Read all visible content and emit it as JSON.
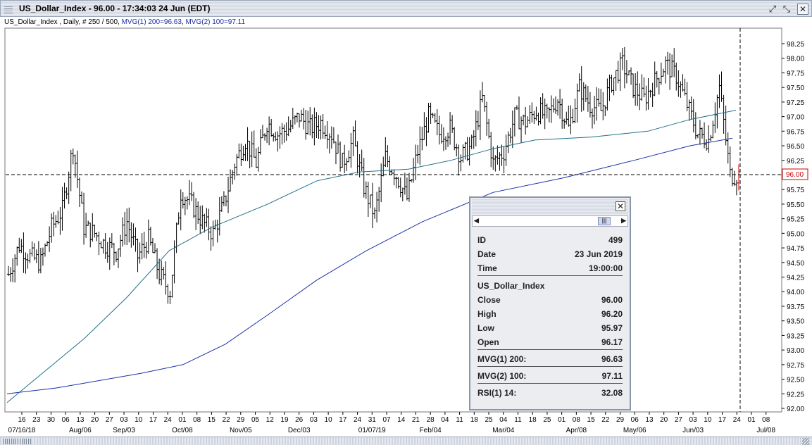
{
  "window": {
    "title": "US_Dollar_Index - 96.00 - 17:34:03  24 Jun (EDT)"
  },
  "subtitle": {
    "prefix": "US_Dollar_Index , Daily, # 250 / 500, ",
    "mvg1": "MVG(1) 200=96.63",
    "sep": ", ",
    "mvg2": "MVG(2) 100=97.11"
  },
  "chart_data": {
    "type": "bar",
    "style": "ohlc",
    "y_ticks": [
      "98.25",
      "98.00",
      "97.75",
      "97.50",
      "97.25",
      "97.00",
      "96.75",
      "96.50",
      "96.25",
      "96.00",
      "95.75",
      "95.50",
      "95.25",
      "95.00",
      "94.75",
      "94.50",
      "94.25",
      "94.00",
      "93.75",
      "93.50",
      "93.25",
      "93.00",
      "92.75",
      "92.50",
      "92.25",
      "92.00"
    ],
    "ylim": [
      92.0,
      98.25
    ],
    "grid": false,
    "price_marker": "96.00",
    "x_day_labels": [
      "16",
      "23",
      "30",
      "06",
      "13",
      "20",
      "27",
      "03",
      "10",
      "17",
      "24",
      "01",
      "08",
      "15",
      "22",
      "29",
      "05",
      "12",
      "19",
      "26",
      "03",
      "10",
      "17",
      "24",
      "31",
      "07",
      "14",
      "21",
      "28",
      "04",
      "11",
      "18",
      "25",
      "04",
      "11",
      "18",
      "25",
      "01",
      "08",
      "15",
      "22",
      "29",
      "06",
      "13",
      "20",
      "27",
      "03",
      "10",
      "17",
      "24",
      "01",
      "08"
    ],
    "x_month_labels": [
      "07/16/18",
      "Aug/06",
      "Sep/03",
      "Oct/08",
      "Nov/05",
      "Dec/03",
      "01/07/19",
      "Feb/04",
      "Mar/04",
      "Apr/08",
      "May/06",
      "Jun/03",
      "Jul/08"
    ],
    "series": [
      {
        "name": "US_Dollar_Index",
        "type": "ohlc",
        "color": "#000000",
        "closes_weekly": [
          94.3,
          94.8,
          94.6,
          94.5,
          95.1,
          95.4,
          96.5,
          95.1,
          95.0,
          94.8,
          94.7,
          95.2,
          94.6,
          94.9,
          94.3,
          94.0,
          95.7,
          95.5,
          95.2,
          95.0,
          95.5,
          96.2,
          96.6,
          96.2,
          96.9,
          96.7,
          96.8,
          97.0,
          96.8,
          96.9,
          96.7,
          96.2,
          96.6,
          95.8,
          95.3,
          96.3,
          96.0,
          95.6,
          96.4,
          97.0,
          96.7,
          96.8,
          96.3,
          96.5,
          97.3,
          96.2,
          96.4,
          97.0,
          96.9,
          97.1,
          97.0,
          97.3,
          96.8,
          97.5,
          97.2,
          97.1,
          97.6,
          97.9,
          97.5,
          97.3,
          97.6,
          97.9,
          97.7,
          97.2,
          96.7,
          96.6,
          97.5,
          96.0
        ]
      },
      {
        "name": "MVG(1) 200",
        "color": "#1a2fa8",
        "last": 96.63
      },
      {
        "name": "MVG(2) 100",
        "color": "#1f6f8a",
        "last": 97.11
      }
    ]
  },
  "info_panel": {
    "rows_top": [
      {
        "label": "ID",
        "value": "499"
      },
      {
        "label": "Date",
        "value": "23 Jun 2019"
      },
      {
        "label": "Time",
        "value": "19:00:00"
      }
    ],
    "symbol": "US_Dollar_Index",
    "rows_ohlc": [
      {
        "label": "Close",
        "value": "96.00"
      },
      {
        "label": "High",
        "value": "96.20"
      },
      {
        "label": "Low",
        "value": "95.97"
      },
      {
        "label": "Open",
        "value": "96.17"
      }
    ],
    "mvg1": {
      "label": "MVG(1) 200:",
      "value": "96.63"
    },
    "mvg2": {
      "label": "MVG(2) 100:",
      "value": "97.11"
    },
    "rsi": {
      "label": "RSI(1) 14:",
      "value": "32.08"
    }
  }
}
